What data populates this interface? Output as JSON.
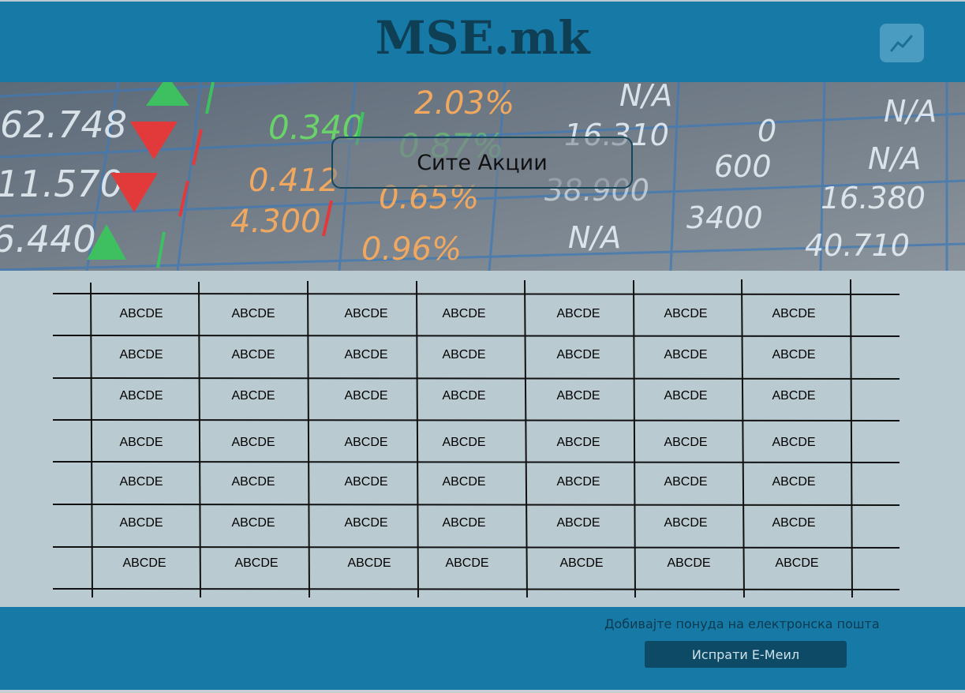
{
  "header": {
    "brand": "MSE.mk",
    "chart_icon": "trending-chart-icon"
  },
  "hero": {
    "button_label": "Сите Акции",
    "background_icon": "stock-ticker-board-image"
  },
  "table": {
    "rows": [
      [
        "ABCDE",
        "ABCDE",
        "ABCDE",
        "ABCDE",
        "ABCDE",
        "ABCDE",
        "ABCDE"
      ],
      [
        "ABCDE",
        "ABCDE",
        "ABCDE",
        "ABCDE",
        "ABCDE",
        "ABCDE",
        "ABCDE"
      ],
      [
        "ABCDE",
        "ABCDE",
        "ABCDE",
        "ABCDE",
        "ABCDE",
        "ABCDE",
        "ABCDE"
      ],
      [
        "ABCDE",
        "ABCDE",
        "ABCDE",
        "ABCDE",
        "ABCDE",
        "ABCDE",
        "ABCDE"
      ],
      [
        "ABCDE",
        "ABCDE",
        "ABCDE",
        "ABCDE",
        "ABCDE",
        "ABCDE",
        "ABCDE"
      ],
      [
        "ABCDE",
        "ABCDE",
        "ABCDE",
        "ABCDE",
        "ABCDE",
        "ABCDE",
        "ABCDE"
      ],
      [
        "ABCDE",
        "ABCDE",
        "ABCDE",
        "ABCDE",
        "ABCDE",
        "ABCDE",
        "ABCDE"
      ]
    ]
  },
  "footer": {
    "promo_text": "Добивајте понуда на електронска пошта",
    "email_button": "Испрати Е-Меил"
  },
  "colors": {
    "header": "#177aa6",
    "brand": "#0e3f54",
    "body": "#b9cad1",
    "email_button": "#0c4a66"
  }
}
